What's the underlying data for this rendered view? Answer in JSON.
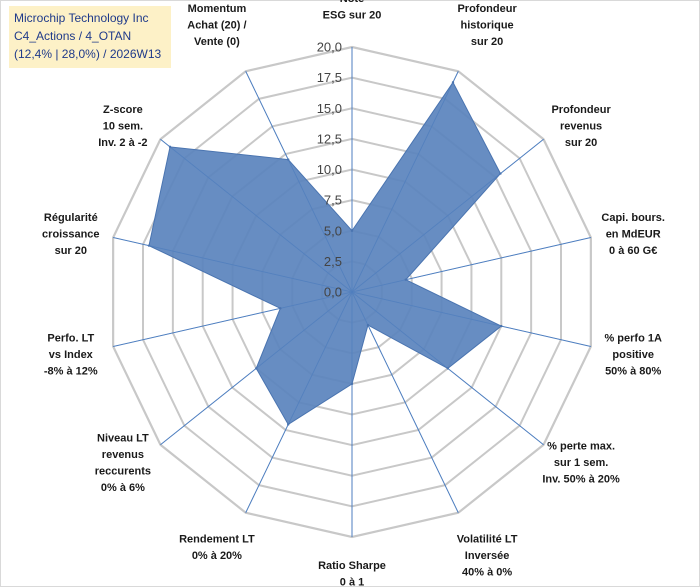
{
  "title_box": {
    "line1": "Microchip Technology Inc",
    "line2": "C4_Actions / 4_OTAN",
    "line3": "(12,4% | 28,0%) / 2026W13"
  },
  "chart_data": {
    "type": "radar",
    "title": "Microchip Technology Inc",
    "rmin": 0,
    "rmax": 20,
    "tick_step": 2.5,
    "ticks": [
      "0,0",
      "2,5",
      "5,0",
      "7,5",
      "10,0",
      "12,5",
      "15,0",
      "17,5",
      "20,0"
    ],
    "axes": [
      {
        "label": [
          "Note",
          "ESG sur 20"
        ],
        "value": 5.0
      },
      {
        "label": [
          "Profondeur",
          "historique",
          "sur 20"
        ],
        "value": 19.0
      },
      {
        "label": [
          "Profondeur",
          "revenus",
          "sur 20"
        ],
        "value": 15.5
      },
      {
        "label": [
          "Capi. bours.",
          "en MdEUR",
          "0 à 60 G€"
        ],
        "value": 4.5
      },
      {
        "label": [
          "% perfo 1A",
          "positive",
          "50% à 80%"
        ],
        "value": 12.5
      },
      {
        "label": [
          "% perte max.",
          "sur 1 sem.",
          "Inv. 50% à 20%"
        ],
        "value": 10.0
      },
      {
        "label": [
          "Volatilité LT",
          "Inversée",
          "40% à 0%"
        ],
        "value": 3.0
      },
      {
        "label": [
          "Ratio Sharpe",
          "0 à 1"
        ],
        "value": 7.5
      },
      {
        "label": [
          "Rendement LT",
          "0% à 20%"
        ],
        "value": 12.0
      },
      {
        "label": [
          "Niveau LT",
          "revenus",
          "reccurents",
          "0% à 6%"
        ],
        "value": 10.0
      },
      {
        "label": [
          "Perfo. LT",
          "vs Index",
          "-8% à 12%"
        ],
        "value": 6.0
      },
      {
        "label": [
          "Régularité",
          "croissance",
          "sur 20"
        ],
        "value": 17.0
      },
      {
        "label": [
          "Z-score",
          "10 sem.",
          "Inv. 2 à -2"
        ],
        "value": 19.0
      },
      {
        "label": [
          "Momentum",
          "Achat (20) /",
          "Vente (0)"
        ],
        "value": 12.0
      }
    ],
    "colors": {
      "fill": "#5b84bd",
      "stroke": "#4a74b0",
      "grid": "#c8c8c8",
      "spoke": "#4f7fc0"
    }
  }
}
